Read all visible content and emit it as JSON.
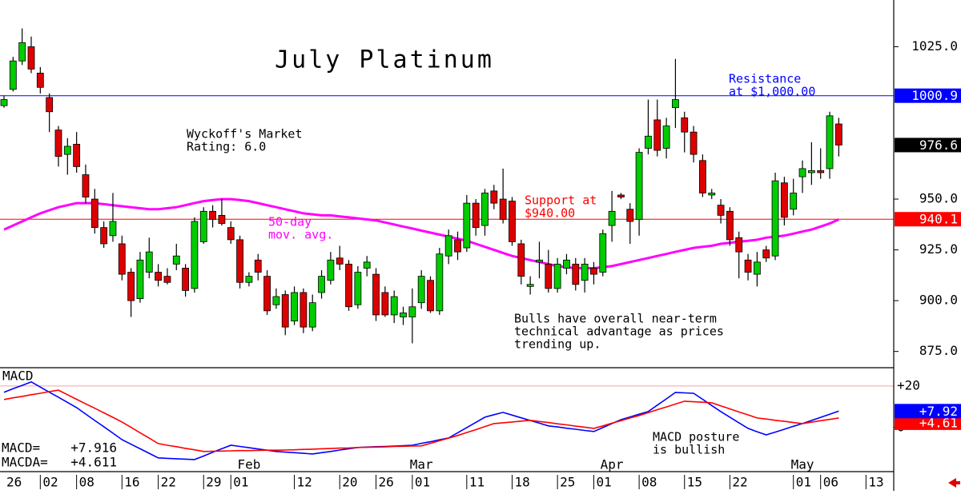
{
  "chart_data": [
    {
      "type": "candlestick",
      "title": "July Platinum",
      "categories": [
        "26",
        null,
        null,
        null,
        "02",
        null,
        null,
        null,
        "08",
        null,
        null,
        null,
        null,
        "16",
        null,
        null,
        null,
        "22",
        null,
        null,
        null,
        null,
        "29",
        null,
        null,
        "01",
        null,
        null,
        null,
        null,
        null,
        null,
        "12",
        null,
        null,
        null,
        null,
        "20",
        null,
        null,
        null,
        "26",
        null,
        null,
        null,
        "01",
        null,
        null,
        null,
        null,
        null,
        "11",
        null,
        null,
        null,
        null,
        "18",
        null,
        null,
        null,
        null,
        "25",
        null,
        null,
        null,
        "01",
        null,
        null,
        null,
        null,
        "08",
        null,
        null,
        null,
        null,
        "15",
        null,
        null,
        null,
        null,
        "22",
        null,
        null,
        null,
        null,
        null,
        null,
        "01",
        null,
        null,
        "06",
        null,
        null,
        null,
        null,
        "13"
      ],
      "month_labels": [
        null,
        null,
        null,
        null,
        null,
        null,
        null,
        null,
        null,
        null,
        null,
        null,
        null,
        null,
        null,
        null,
        null,
        null,
        null,
        null,
        null,
        null,
        null,
        null,
        null,
        null,
        null,
        "Feb",
        null,
        null,
        null,
        null,
        null,
        null,
        null,
        null,
        null,
        null,
        null,
        null,
        null,
        null,
        null,
        null,
        null,
        null,
        "Mar",
        null,
        null,
        null,
        null,
        null,
        null,
        null,
        null,
        null,
        null,
        null,
        null,
        null,
        null,
        null,
        null,
        null,
        null,
        null,
        null,
        "Apr",
        null,
        null,
        null,
        null,
        null,
        null,
        null,
        null,
        null,
        null,
        null,
        null,
        null,
        null,
        null,
        null,
        null,
        null,
        null,
        null,
        "May",
        null,
        null,
        null,
        null,
        null,
        null,
        null
      ],
      "open": [
        996,
        1004,
        1018,
        1025,
        1012,
        1000,
        984,
        972,
        977,
        962,
        950,
        936,
        932,
        928,
        914,
        901,
        914,
        914,
        912,
        918,
        916,
        906,
        929,
        944,
        942,
        936,
        930,
        909,
        920,
        912,
        898,
        903,
        890,
        904,
        887,
        904,
        910,
        921,
        918,
        898,
        916,
        913,
        904,
        893,
        892,
        892,
        899,
        910,
        895,
        922,
        930,
        926,
        948,
        937,
        954,
        950,
        949,
        928,
        907,
        919,
        918,
        906,
        916,
        918,
        910,
        916,
        914,
        937,
        952,
        945,
        940,
        975,
        989,
        975,
        995,
        990,
        983,
        969,
        952,
        947,
        944,
        931,
        920,
        913,
        925,
        922,
        958,
        945,
        961,
        963,
        964,
        965,
        987,
        null,
        null,
        null
      ],
      "high": [
        1001,
        1020,
        1034,
        1030,
        1015,
        1002,
        986,
        980,
        983,
        967,
        955,
        939,
        953,
        932,
        916,
        924,
        931,
        918,
        916,
        928,
        918,
        941,
        946,
        947,
        950,
        939,
        932,
        914,
        923,
        915,
        906,
        905,
        907,
        906,
        903,
        915,
        924,
        927,
        920,
        917,
        922,
        916,
        907,
        905,
        897,
        906,
        915,
        912,
        926,
        935,
        934,
        952,
        950,
        955,
        957,
        965,
        951,
        930,
        912,
        929,
        925,
        921,
        923,
        921,
        921,
        919,
        935,
        954,
        953,
        948,
        975,
        999,
        999,
        990,
        1019,
        993,
        986,
        972,
        955,
        950,
        946,
        934,
        923,
        924,
        927,
        963,
        961,
        960,
        969,
        978,
        975,
        993,
        990,
        null,
        null,
        null
      ],
      "low": [
        995,
        1003,
        1016,
        1012,
        1002,
        983,
        966,
        962,
        963,
        948,
        933,
        926,
        929,
        910,
        892,
        899,
        911,
        907,
        908,
        915,
        902,
        904,
        928,
        936,
        937,
        928,
        906,
        907,
        910,
        893,
        896,
        883,
        888,
        884,
        885,
        901,
        908,
        915,
        895,
        896,
        912,
        890,
        892,
        889,
        888,
        879,
        896,
        894,
        893,
        918,
        920,
        924,
        932,
        932,
        945,
        938,
        927,
        908,
        903,
        911,
        904,
        904,
        913,
        905,
        904,
        908,
        912,
        929,
        950,
        928,
        932,
        972,
        971,
        970,
        985,
        973,
        968,
        951,
        950,
        938,
        927,
        911,
        910,
        907,
        919,
        920,
        937,
        942,
        953,
        957,
        960,
        960,
        971,
        null,
        null,
        null
      ],
      "close": [
        999,
        1018,
        1027,
        1014,
        1005,
        993,
        971,
        976,
        966,
        951,
        936,
        928,
        939,
        913,
        900,
        920,
        924,
        910,
        909,
        922,
        905,
        939,
        944,
        940,
        938,
        930,
        909,
        912,
        914,
        895,
        902,
        887,
        904,
        887,
        899,
        912,
        920,
        918,
        897,
        914,
        919,
        893,
        893,
        902,
        894,
        897,
        912,
        895,
        923,
        932,
        924,
        948,
        936,
        953,
        948,
        940,
        929,
        912,
        908,
        920,
        906,
        918,
        920,
        908,
        918,
        913,
        933,
        944,
        951,
        939,
        973,
        981,
        974,
        986,
        999,
        983,
        972,
        953,
        953,
        942,
        930,
        924,
        914,
        919,
        921,
        959,
        941,
        953,
        965,
        964,
        963,
        991,
        976.6,
        null,
        null,
        null
      ],
      "last_close_label": "976.6",
      "up_color": "#00cc00",
      "down_color": "#dd0000",
      "overlays": [
        {
          "label_lines": [
            "50-day",
            "mov. avg."
          ],
          "color": "#ff00ff",
          "values": [
            935,
            937,
            939,
            941,
            943,
            944.5,
            946,
            947,
            948,
            948,
            948,
            947.5,
            947,
            946.5,
            946,
            945.5,
            945,
            945,
            945.5,
            946,
            947,
            948,
            949,
            949.5,
            950,
            950,
            949.5,
            949,
            948,
            947,
            946,
            945,
            944,
            943,
            942.5,
            942,
            942,
            941.5,
            941,
            940.5,
            940,
            939.5,
            938.5,
            937.5,
            936.5,
            935.5,
            934.5,
            933.5,
            932.5,
            931.5,
            930.5,
            929.5,
            928,
            926.5,
            925,
            923.5,
            922,
            921,
            920,
            919,
            918,
            917,
            916.5,
            916,
            916,
            916,
            916.5,
            917,
            918,
            919,
            920,
            921,
            922,
            923,
            924,
            925,
            926,
            926.5,
            927,
            928,
            928.5,
            929,
            929.5,
            930,
            931,
            931.5,
            932,
            933,
            934,
            935,
            936.5,
            938,
            940,
            null,
            null,
            null
          ]
        }
      ],
      "hlines": [
        {
          "value": 1000.9,
          "label": "1000.9",
          "color": "#0000ff"
        },
        {
          "value": 940.1,
          "label": "940.1",
          "color": "#ff0000"
        }
      ],
      "annotations": [
        {
          "lines": [
            "Wyckoff's Market",
            "Rating: 6.0"
          ],
          "color": "#000000"
        },
        {
          "lines": [
            "Resistance",
            "at $1,000.00"
          ],
          "color": "#0000ff"
        },
        {
          "lines": [
            "Support at",
            "$940.00"
          ],
          "color": "#ff0000"
        },
        {
          "lines": [
            "Bulls have overall near-term",
            "technical advantage as prices",
            "trending up."
          ],
          "color": "#000000"
        }
      ],
      "ylim": [
        867,
        1048
      ],
      "yticks": [
        {
          "value": 1025,
          "label": "1025.0"
        },
        {
          "value": 950,
          "label": "950.0"
        },
        {
          "value": 925,
          "label": "925.0"
        },
        {
          "value": 900,
          "label": "900.0"
        },
        {
          "value": 875,
          "label": "875.0"
        }
      ]
    },
    {
      "type": "line",
      "title": "MACD",
      "series": [
        {
          "name": "MACD=",
          "color": "#0000ff",
          "readout": "+7.916",
          "last_label": "+7.92",
          "values": [
            17,
            18.7,
            20.3,
            22,
            19.5,
            17,
            14.6,
            12.1,
            9.6,
            6.5,
            3.4,
            0.4,
            -2.7,
            -5.8,
            -8,
            -10.2,
            -12.4,
            -14.6,
            -14.8,
            -15,
            -15.2,
            -15.4,
            -13.7,
            -11.9,
            -10.2,
            -8.5,
            -9.1,
            -9.7,
            -10.3,
            -10.9,
            -11.5,
            -11.8,
            -12.1,
            -12.4,
            -12.7,
            -12.1,
            -11.5,
            -10.8,
            -10.2,
            -9.6,
            -9.4,
            -9.2,
            -9.1,
            -8.9,
            -8.7,
            -8.5,
            -7.6,
            -6.8,
            -5.9,
            -5,
            -2.5,
            0,
            2.5,
            5,
            6.2,
            7.3,
            6,
            4.7,
            3.4,
            2.1,
            0.8,
            0.3,
            -0.3,
            -0.8,
            -1.4,
            -1.9,
            0,
            1.9,
            3.8,
            5.1,
            6.4,
            7.7,
            10.8,
            13.8,
            16.9,
            16.7,
            16.5,
            13.6,
            10.6,
            7.7,
            5,
            2.3,
            -0.4,
            -2,
            -3.5,
            -2.2,
            -0.8,
            0.6,
            1.9,
            3.4,
            4.9,
            6.4,
            7.916,
            null,
            null,
            null
          ]
        },
        {
          "name": "MACDA=",
          "color": "#ff0000",
          "readout": "+4.611",
          "last_label": "+4.61",
          "values": [
            13.5,
            14.3,
            15,
            15.8,
            16.5,
            17.3,
            18,
            15.8,
            13.6,
            11.4,
            9.3,
            7.1,
            4.9,
            2.7,
            0.1,
            -2.5,
            -5.1,
            -7.7,
            -8.5,
            -9.2,
            -10,
            -10.7,
            -11.5,
            -11.4,
            -11.3,
            -11.2,
            -11.1,
            -11.1,
            -11,
            -10.9,
            -10.9,
            -10.8,
            -10.7,
            -10.5,
            -10.4,
            -10.2,
            -10.1,
            -9.9,
            -9.8,
            -9.6,
            -9.5,
            -9.4,
            -9.3,
            -9.1,
            -9,
            -8.9,
            -8.8,
            -7.6,
            -6.3,
            -5.1,
            -3.8,
            -2.4,
            -1,
            0.5,
            1.9,
            2.3,
            2.7,
            3.1,
            3.5,
            2.9,
            2.4,
            1.8,
            1.3,
            0.7,
            0.2,
            -0.4,
            0.8,
            2.1,
            3.3,
            4.6,
            5.8,
            7.2,
            8.6,
            9.9,
            11.3,
            12.7,
            12.4,
            12.2,
            11.9,
            10.4,
            9,
            7.5,
            6.1,
            4.6,
            4.1,
            3.5,
            3,
            2.4,
            1.9,
            2.6,
            3.3,
            3.9,
            4.611,
            null,
            null,
            null
          ]
        }
      ],
      "annotations": [
        {
          "lines": [
            "MACD posture",
            "is bullish"
          ],
          "color": "#000000"
        }
      ],
      "ylim": [
        -21.2,
        28.8
      ],
      "yticks": [
        {
          "value": 20,
          "label": "+20"
        },
        0
      ]
    }
  ]
}
